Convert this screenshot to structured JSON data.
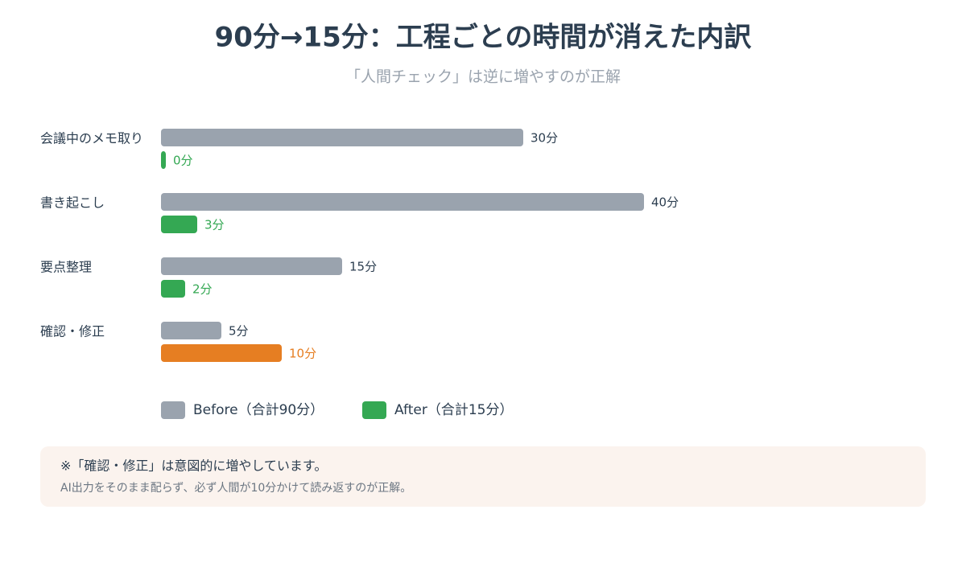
{
  "chart_data": {
    "type": "bar",
    "orientation": "horizontal",
    "title": "90分→15分：工程ごとの時間が消えた内訳",
    "subtitle": "「人間チェック」は逆に増やすのが正解",
    "categories": [
      "会議中のメモ取り",
      "書き起こし",
      "要点整理",
      "確認・修正"
    ],
    "series": [
      {
        "name": "Before（合計90分）",
        "color": "#9aa3ae",
        "values": [
          30,
          40,
          15,
          5
        ],
        "value_labels": [
          "30分",
          "40分",
          "15分",
          "5分"
        ]
      },
      {
        "name": "After（合計15分）",
        "color": "#34a853",
        "value_colors": [
          "#34a853",
          "#34a853",
          "#34a853",
          "#e67e22"
        ],
        "values": [
          0,
          3,
          2,
          10
        ],
        "value_labels": [
          "0分",
          "3分",
          "2分",
          "10分"
        ]
      }
    ]
  },
  "note": {
    "title": "※「確認・修正」は意図的に増やしています。",
    "text": "AI出力をそのまま配らず、必ず人間が10分かけて読み返すのが正解。"
  }
}
